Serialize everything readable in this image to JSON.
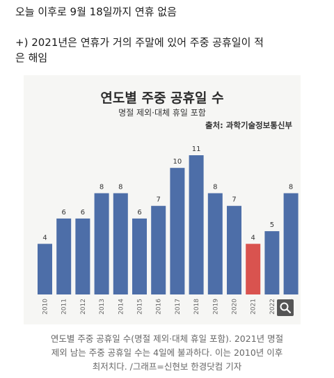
{
  "post": {
    "line1": "오늘 이후로 9월 18일까지 연휴 없음",
    "line2": "+) 2021년은 연휴가 거의 주말에 있어 주중 공휴일이 적",
    "line3": "은 해임"
  },
  "chart_data": {
    "type": "bar",
    "title": "연도별 주중 공휴일 수",
    "subtitle": "명절 제외·대체 휴일 포함",
    "source": "출처: 과학기술정보통신부",
    "categories": [
      "2010",
      "2011",
      "2012",
      "2013",
      "2014",
      "2015",
      "2016",
      "2017",
      "2018",
      "2019",
      "2020",
      "2021",
      "2022",
      "2023"
    ],
    "values": [
      4,
      6,
      6,
      8,
      8,
      6,
      7,
      10,
      11,
      8,
      7,
      4,
      5,
      8
    ],
    "highlight_category": "2021",
    "colors": {
      "bar": "#4d6ea8",
      "highlight": "#d9534f",
      "label": "#333333",
      "tick": "#666666"
    },
    "ylim": [
      0,
      12
    ],
    "grid": false
  },
  "caption": {
    "line1": "연도별 주중 공휴일 수(명절 제외·대체 휴일 포함). 2021년 명절",
    "line2": "제외 남는 주중 공휴일 수는 4일에 불과하다. 이는 2010년 이후",
    "line3": "최저치다. /그래프=신현보 한경닷컴 기자"
  },
  "icons": {
    "zoom": "zoom-search-icon"
  }
}
